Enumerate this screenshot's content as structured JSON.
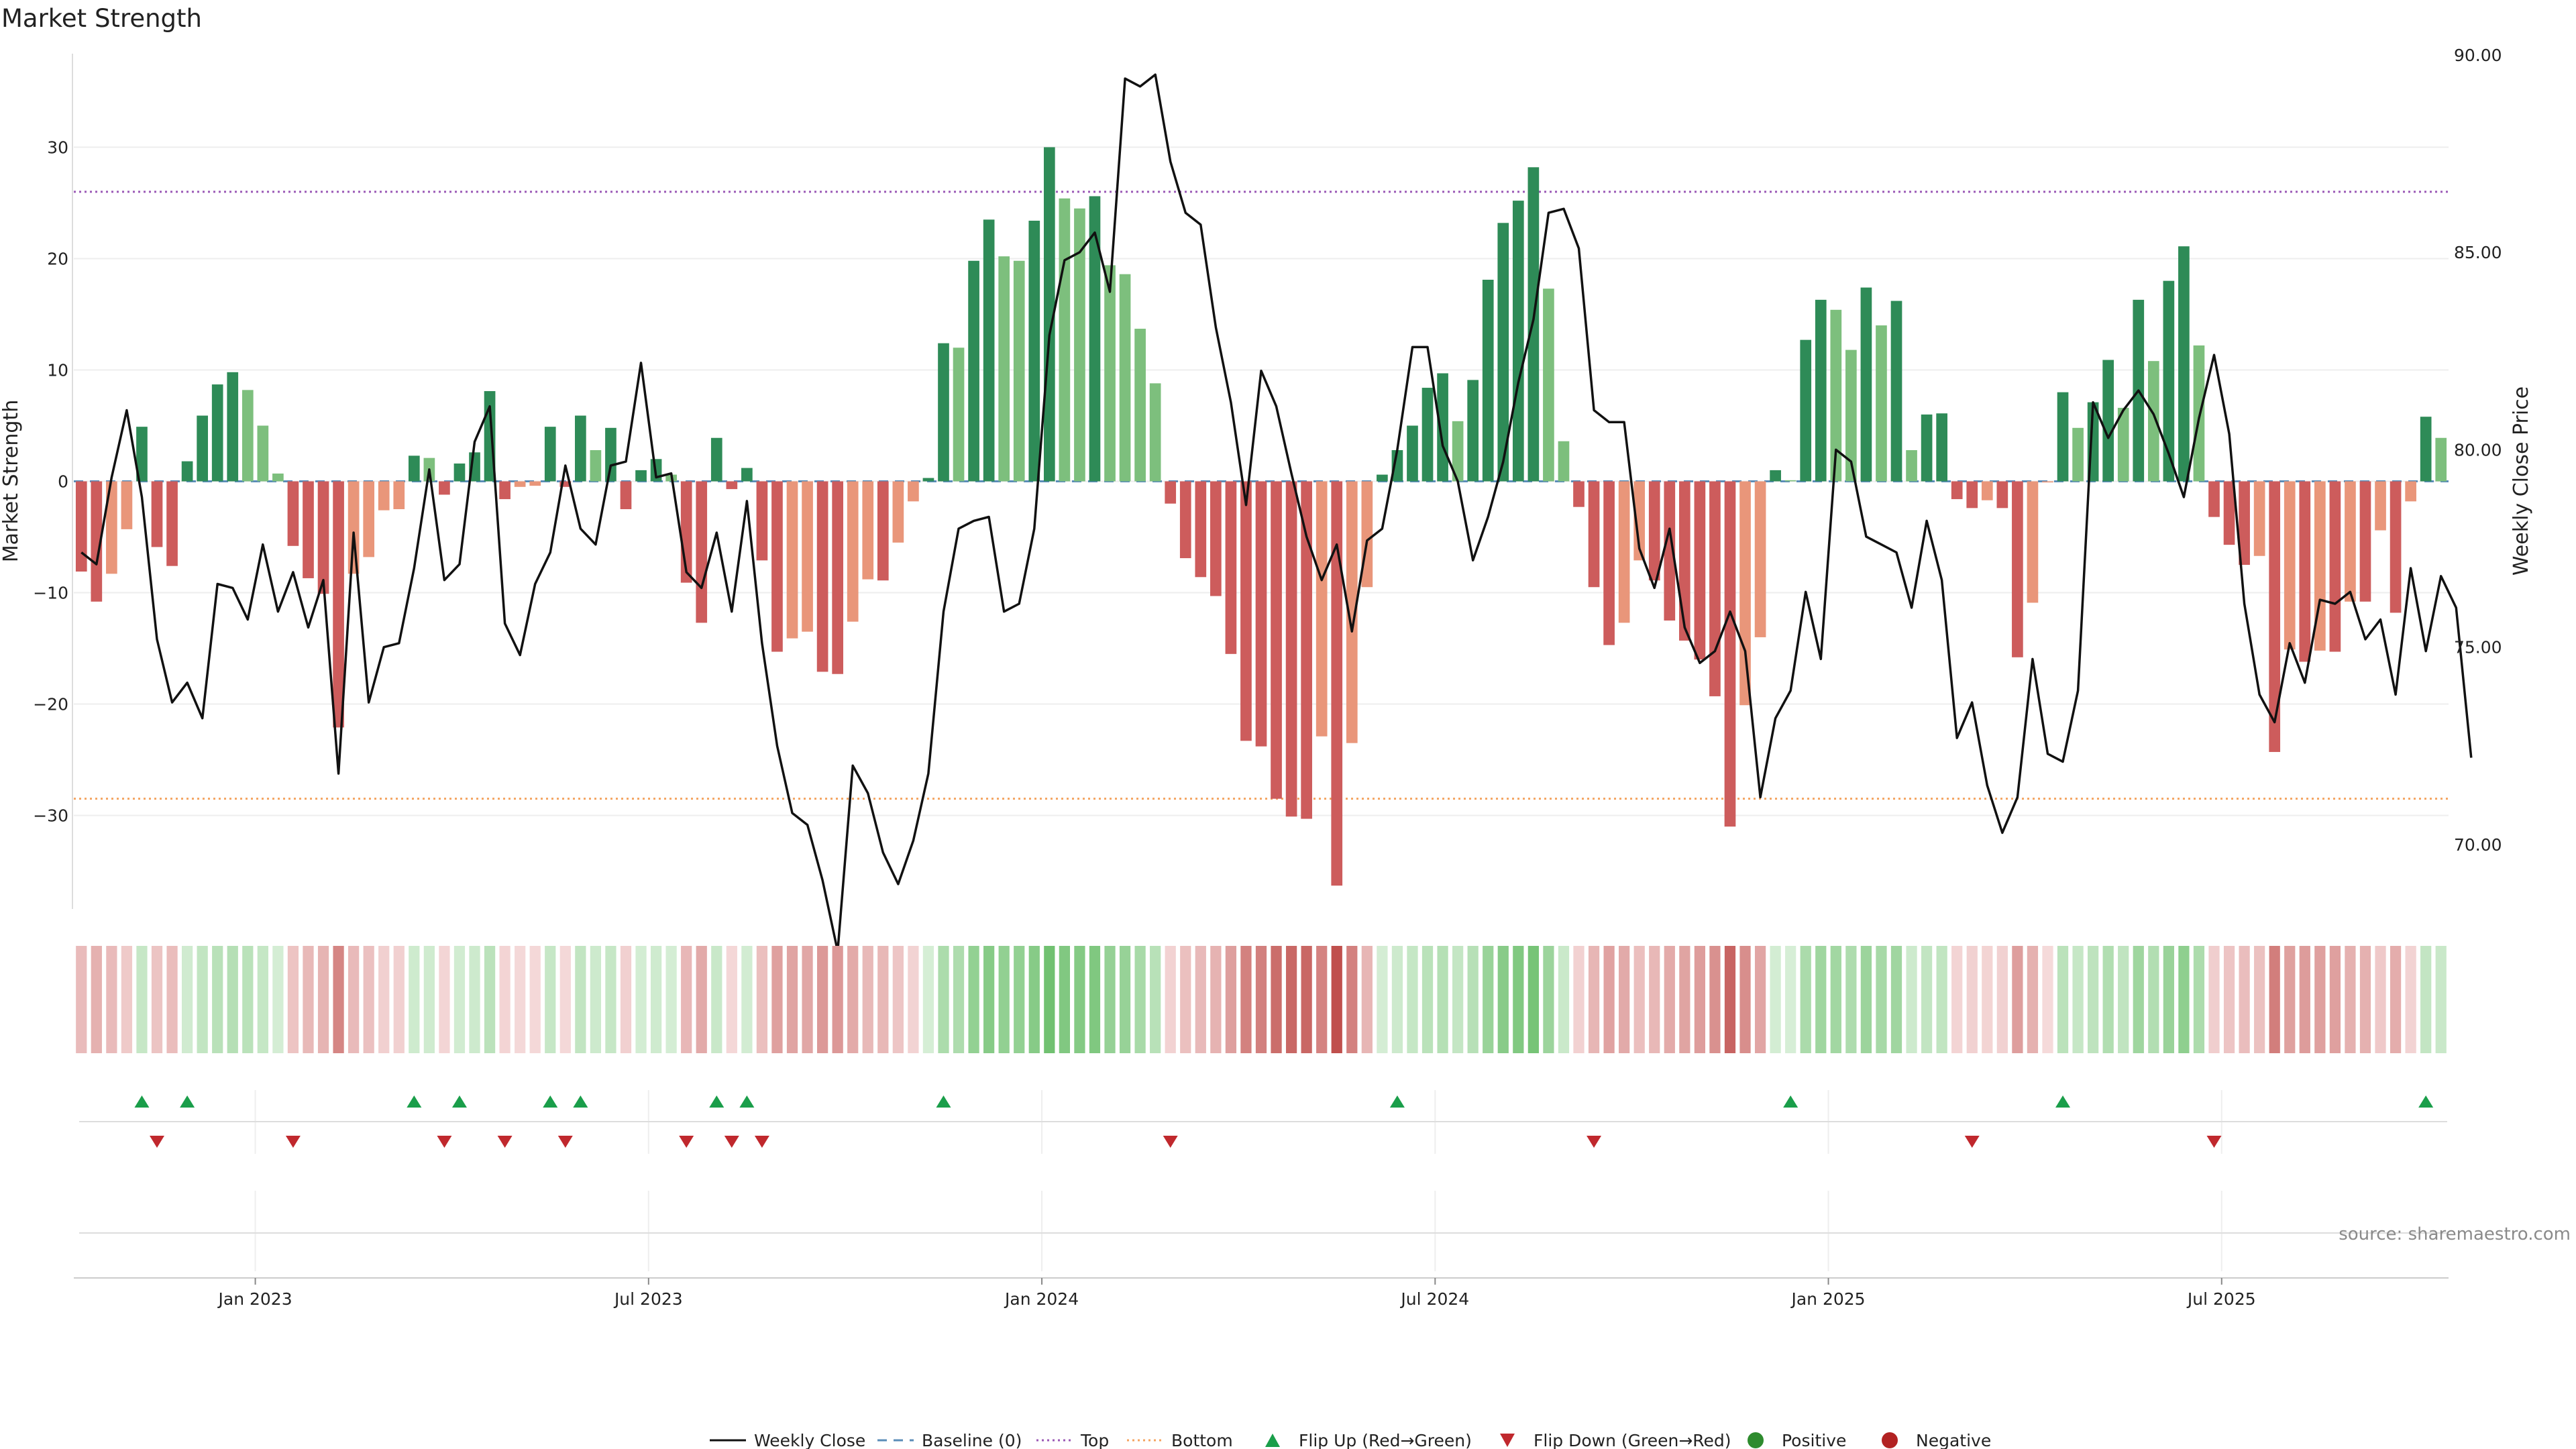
{
  "chart_data": {
    "type": "bar",
    "title": "Market Strength",
    "ylabel": "Market Strength",
    "y2label": "Weekly Close Price",
    "ylim": [
      -39,
      39
    ],
    "y2lim": [
      68.2,
      90.2
    ],
    "yticks": [
      "30",
      "20",
      "10",
      "0",
      "−10",
      "−20",
      "−30"
    ],
    "ytick_values": [
      30,
      20,
      10,
      0,
      -10,
      -20,
      -30
    ],
    "y2ticks": [
      "90.00",
      "85.00",
      "80.00",
      "75.00",
      "70.00"
    ],
    "y2tick_values": [
      90,
      85,
      80,
      75,
      70
    ],
    "x_start": "2022-10-09",
    "week_count": 157,
    "xticks": [
      {
        "label": "Jan 2023",
        "week": 12
      },
      {
        "label": "Jul 2023",
        "week": 38
      },
      {
        "label": "Jan 2024",
        "week": 64
      },
      {
        "label": "Jul 2024",
        "week": 90
      },
      {
        "label": "Jan 2025",
        "week": 116
      },
      {
        "label": "Jul 2025",
        "week": 142
      }
    ],
    "top_level": 26,
    "bottom_level": -28.5,
    "colors": {
      "strong_green": "#2e8b57",
      "light_green": "#7dbf7d",
      "strong_red": "#cd5c5c",
      "light_red": "#e9967a",
      "top_line": "#9b59b6",
      "bottom_line": "#f4a460",
      "baseline": "#5b8db8",
      "price_line": "#111111",
      "flip_up": "#1a9e4a",
      "flip_down": "#c0282d",
      "positive": "#2e8b2e",
      "negative": "#b22222"
    },
    "strength": [
      -8.1,
      -10.8,
      -8.3,
      -4.3,
      4.9,
      -5.9,
      -7.6,
      1.8,
      5.9,
      8.7,
      9.8,
      8.2,
      5.0,
      0.7,
      -5.8,
      -8.7,
      -10.1,
      -22.1,
      -8.3,
      -6.8,
      -2.6,
      -2.5,
      2.3,
      2.1,
      -1.2,
      1.6,
      2.6,
      8.1,
      -1.6,
      -0.5,
      -0.4,
      4.9,
      -0.5,
      5.9,
      2.8,
      4.8,
      -2.5,
      1.0,
      2.0,
      0.6,
      -9.1,
      -12.7,
      3.9,
      -0.7,
      1.2,
      -7.1,
      -15.3,
      -14.1,
      -13.5,
      -17.1,
      -17.3,
      -12.6,
      -8.8,
      -8.9,
      -5.5,
      -1.8,
      0.3,
      12.4,
      12.0,
      19.8,
      23.5,
      20.2,
      19.8,
      23.4,
      30.0,
      25.4,
      24.5,
      25.6,
      19.4,
      18.6,
      13.7,
      8.8,
      -2.0,
      -6.9,
      -8.6,
      -10.3,
      -15.5,
      -23.3,
      -23.8,
      -28.5,
      -30.1,
      -30.3,
      -22.9,
      -36.3,
      -23.5,
      -9.5,
      0.6,
      2.8,
      5.0,
      8.4,
      9.7,
      5.4,
      9.1,
      18.1,
      23.2,
      25.2,
      28.2,
      17.3,
      3.6,
      -2.3,
      -9.5,
      -14.7,
      -12.7,
      -7.1,
      -8.9,
      -12.5,
      -14.3,
      -16.0,
      -19.3,
      -31.0,
      -20.1,
      -14.0,
      1.0,
      0.1,
      12.7,
      16.3,
      15.4,
      11.8,
      17.4,
      14.0,
      16.2,
      2.8,
      6.0,
      6.1,
      -1.6,
      -2.4,
      -1.7,
      -2.4,
      -15.8,
      -10.9,
      -0.1,
      8.0,
      4.8,
      7.1,
      10.9,
      6.6,
      16.3,
      10.8,
      18.0,
      21.1,
      12.2,
      -3.2,
      -5.7,
      -7.5,
      -6.7,
      -24.3,
      -15.1,
      -16.2,
      -15.2,
      -15.3,
      -10.8,
      -10.8,
      -4.4,
      -11.8,
      -1.8,
      5.8,
      3.9
    ],
    "price": [
      77.4,
      77.1,
      79.3,
      81.0,
      78.8,
      75.2,
      73.6,
      74.1,
      73.2,
      76.6,
      76.5,
      75.7,
      77.6,
      75.9,
      76.9,
      75.5,
      76.7,
      71.8,
      77.9,
      73.6,
      75.0,
      75.1,
      77.0,
      79.5,
      76.7,
      77.1,
      80.2,
      81.1,
      75.6,
      74.8,
      76.6,
      77.4,
      79.6,
      78.0,
      77.6,
      79.6,
      79.7,
      82.2,
      79.3,
      79.4,
      76.9,
      76.5,
      77.9,
      75.9,
      78.7,
      75.1,
      72.5,
      70.8,
      70.5,
      69.1,
      67.3,
      72.0,
      71.3,
      69.8,
      69.0,
      70.1,
      71.8,
      75.9,
      78.0,
      78.2,
      78.3,
      75.9,
      76.1,
      78.0,
      82.9,
      84.8,
      85.0,
      85.5,
      84.0,
      89.4,
      89.2,
      89.5,
      87.3,
      86.0,
      85.7,
      83.1,
      81.2,
      78.6,
      82.0,
      81.1,
      79.4,
      77.8,
      76.7,
      77.6,
      75.4,
      77.7,
      78.0,
      80.0,
      82.6,
      82.6,
      80.1,
      79.2,
      77.2,
      78.3,
      79.7,
      81.7,
      83.3,
      86.0,
      86.1,
      85.1,
      81.0,
      80.7,
      80.7,
      77.5,
      76.5,
      78.0,
      75.5,
      74.6,
      74.9,
      75.9,
      74.9,
      71.2,
      73.2,
      73.9,
      76.4,
      74.7,
      80.0,
      79.7,
      77.8,
      77.6,
      77.4,
      76.0,
      78.2,
      76.7,
      72.7,
      73.6,
      71.5,
      70.3,
      71.2,
      74.7,
      72.3,
      72.1,
      73.9,
      81.2,
      80.3,
      81.0,
      81.5,
      80.9,
      79.9,
      78.8,
      80.8,
      82.4,
      80.4,
      76.1,
      73.8,
      73.1,
      75.1,
      74.1,
      76.2,
      76.1,
      76.4,
      75.2,
      75.7,
      73.8,
      77.0,
      74.9,
      76.8,
      76.0,
      72.2
    ],
    "heat_strip": {
      "description_free_note": "",
      "levels": "strength"
    },
    "flip_up_weeks": [
      4,
      7,
      22,
      25,
      31,
      33,
      42,
      44,
      57,
      87,
      113,
      131,
      155
    ],
    "flip_down_weeks": [
      5,
      14,
      24,
      28,
      32,
      40,
      43,
      45,
      72,
      100,
      125,
      141
    ],
    "legend": [
      {
        "label": "Weekly Close",
        "kind": "line"
      },
      {
        "label": "Baseline (0)",
        "kind": "dash"
      },
      {
        "label": "Top",
        "kind": "dot"
      },
      {
        "label": "Bottom",
        "kind": "dot-orange"
      },
      {
        "label": "Flip Up (Red→Green)",
        "kind": "tri-up"
      },
      {
        "label": "Flip Down (Green→Red)",
        "kind": "tri-down"
      },
      {
        "label": "Positive",
        "kind": "dot-green"
      },
      {
        "label": "Negative",
        "kind": "dot-red"
      }
    ],
    "source": "source: sharemaestro.com"
  }
}
